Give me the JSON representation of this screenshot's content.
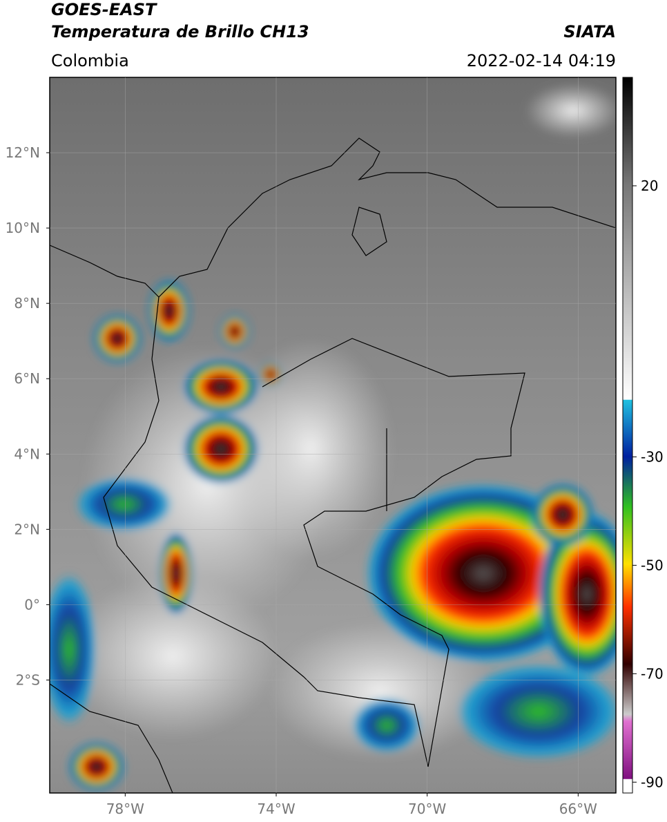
{
  "header": {
    "title": "GOES-EAST",
    "subtitle": "Temperatura de Brillo CH13",
    "region": "Colombia",
    "source": "SIATA",
    "timestamp": "2022-02-14 04:19"
  },
  "map": {
    "xlim": [
      -80,
      -65
    ],
    "ylim": [
      -5,
      14
    ],
    "xticks": [
      {
        "value": -78,
        "label": "78°W"
      },
      {
        "value": -74,
        "label": "74°W"
      },
      {
        "value": -70,
        "label": "70°W"
      },
      {
        "value": -66,
        "label": "66°W"
      }
    ],
    "yticks": [
      {
        "value": 12,
        "label": "12°N"
      },
      {
        "value": 10,
        "label": "10°N"
      },
      {
        "value": 8,
        "label": "8°N"
      },
      {
        "value": 6,
        "label": "6°N"
      },
      {
        "value": 4,
        "label": "4°N"
      },
      {
        "value": 2,
        "label": "2°N"
      },
      {
        "value": 0,
        "label": "0°"
      },
      {
        "value": -2,
        "label": "2°S"
      }
    ]
  },
  "colorbar": {
    "lim": [
      -92,
      40
    ],
    "ticks": [
      20,
      -30,
      -50,
      -70,
      -90
    ]
  }
}
